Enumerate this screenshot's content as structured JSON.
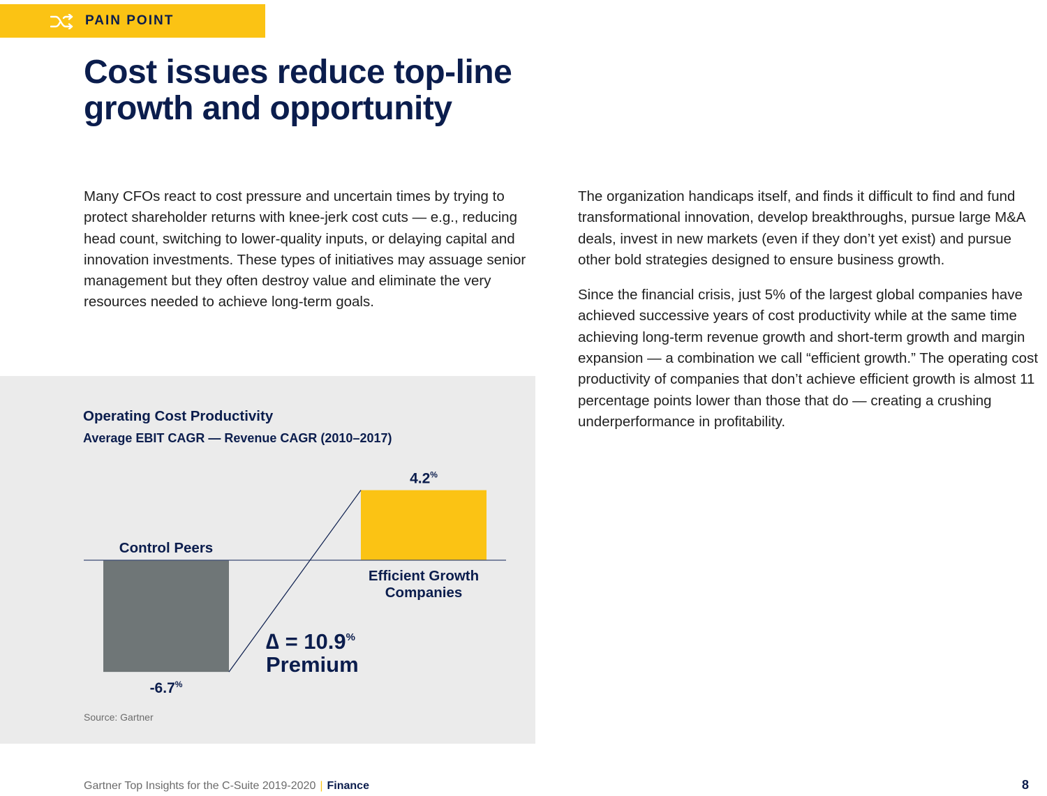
{
  "banner": {
    "label": "PAIN POINT",
    "icon": "shuffle-icon",
    "color": "#fbc314"
  },
  "title_line1": "Cost issues reduce top-line",
  "title_line2": "growth and opportunity",
  "left_paragraph": "Many CFOs react to cost pressure and uncertain times by trying to protect shareholder returns with knee-jerk cost cuts — e.g., reducing head count, switching to lower-quality inputs, or delaying capital and innovation investments. These types of initiatives may assuage senior management but they often destroy value and eliminate the very resources needed to achieve long-term goals.",
  "right_paragraph_1": "The organization handicaps itself, and finds it difficult to find and fund transformational innovation, develop breakthroughs, pursue large M&A deals, invest in new markets (even if they don’t yet exist) and pursue other bold strategies designed to ensure business growth.",
  "right_paragraph_2": "Since the financial crisis, just 5% of the largest global companies have achieved successive years of cost productivity while at the same time achieving long-term revenue growth and short-term growth and margin expansion — a combination we call “efficient growth.” The operating cost productivity of companies that don’t achieve efficient growth is almost 11 percentage points lower than those that do — creating a crushing underperformance in profitability.",
  "chart_data": {
    "type": "bar",
    "title": "Operating Cost Productivity",
    "subtitle": "Average EBIT CAGR — Revenue CAGR (2010–2017)",
    "categories": [
      "Control Peers",
      "Efficient Growth Companies"
    ],
    "category_lines": [
      [
        "Control Peers"
      ],
      [
        "Efficient Growth",
        "Companies"
      ]
    ],
    "values": [
      -6.7,
      4.2
    ],
    "value_labels": [
      "-6.7",
      "4.2"
    ],
    "unit": "%",
    "colors": [
      "#6f7677",
      "#fbc314"
    ],
    "annotation": {
      "delta_prefix": "∆ = ",
      "delta_value": "10.9",
      "unit": "%",
      "label": "Premium"
    },
    "source": "Source: Gartner"
  },
  "footer": {
    "publication": "Gartner Top Insights for the C-Suite 2019-2020",
    "separator": "|",
    "section": "Finance",
    "page": "8"
  },
  "colors": {
    "navy": "#0b1d4d",
    "panel_bg": "#ebebeb"
  }
}
